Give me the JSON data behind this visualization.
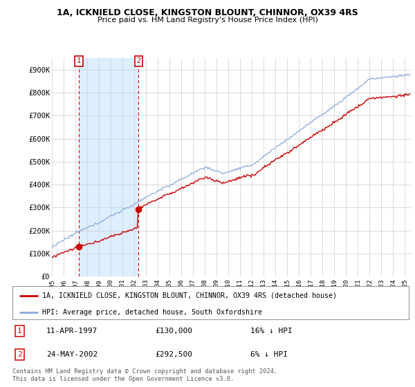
{
  "title1": "1A, ICKNIELD CLOSE, KINGSTON BLOUNT, CHINNOR, OX39 4RS",
  "title2": "Price paid vs. HM Land Registry's House Price Index (HPI)",
  "legend_line1": "1A, ICKNIELD CLOSE, KINGSTON BLOUNT, CHINNOR, OX39 4RS (detached house)",
  "legend_line2": "HPI: Average price, detached house, South Oxfordshire",
  "transaction1_label": "1",
  "transaction1_date": "11-APR-1997",
  "transaction1_price": "£130,000",
  "transaction1_hpi": "16% ↓ HPI",
  "transaction2_label": "2",
  "transaction2_date": "24-MAY-2002",
  "transaction2_price": "£292,500",
  "transaction2_hpi": "6% ↓ HPI",
  "footer": "Contains HM Land Registry data © Crown copyright and database right 2024.\nThis data is licensed under the Open Government Licence v3.0.",
  "red_color": "#cc0000",
  "blue_color": "#88aadd",
  "vline_color": "#cc0000",
  "shade_color": "#ddeeff",
  "background_color": "#ffffff",
  "grid_color": "#cccccc",
  "ylim": [
    0,
    950000
  ],
  "yticks": [
    0,
    100000,
    200000,
    300000,
    400000,
    500000,
    600000,
    700000,
    800000,
    900000
  ],
  "ytick_labels": [
    "£0",
    "£100K",
    "£200K",
    "£300K",
    "£400K",
    "£500K",
    "£600K",
    "£700K",
    "£800K",
    "£900K"
  ],
  "t1_year": 1997.29,
  "t2_year": 2002.37,
  "t1_price": 130000,
  "t2_price": 292500,
  "xmin": 1995.0,
  "xmax": 2025.5
}
